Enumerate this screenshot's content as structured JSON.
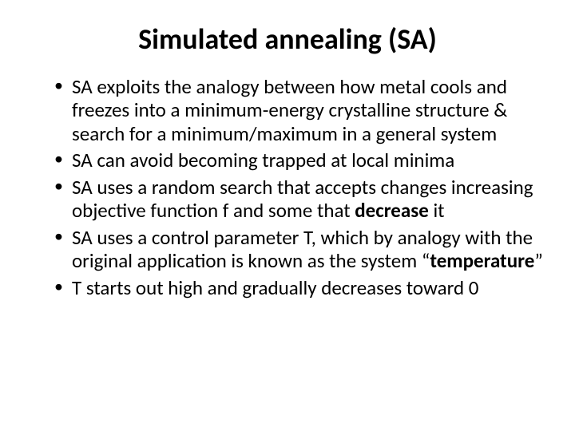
{
  "slide": {
    "title": "Simulated annealing (SA)",
    "title_fontsize": 36,
    "title_fontweight": 700,
    "title_align": "center",
    "body_fontsize": 25,
    "body_lineheight": 1.18,
    "text_color": "#000000",
    "background_color": "#ffffff",
    "bullet_char": "•",
    "bullets": [
      {
        "runs": [
          {
            "text": "SA exploits the analogy between how metal cools and freezes into a minimum-energy crystalline structure & search for a minimum/maximum in a general system",
            "bold": false
          }
        ]
      },
      {
        "runs": [
          {
            "text": "SA can avoid becoming trapped at local minima",
            "bold": false
          }
        ]
      },
      {
        "runs": [
          {
            "text": "SA uses a random search that accepts changes increasing objective function f and some that ",
            "bold": false
          },
          {
            "text": "decrease",
            "bold": true
          },
          {
            "text": " it",
            "bold": false
          }
        ]
      },
      {
        "runs": [
          {
            "text": "SA uses a control parameter T, which by analogy with the original application is known as the system “",
            "bold": false
          },
          {
            "text": "temperature",
            "bold": true
          },
          {
            "text": "”",
            "bold": false
          }
        ]
      },
      {
        "runs": [
          {
            "text": "T starts out high and gradually decreases toward 0",
            "bold": false
          }
        ]
      }
    ]
  }
}
